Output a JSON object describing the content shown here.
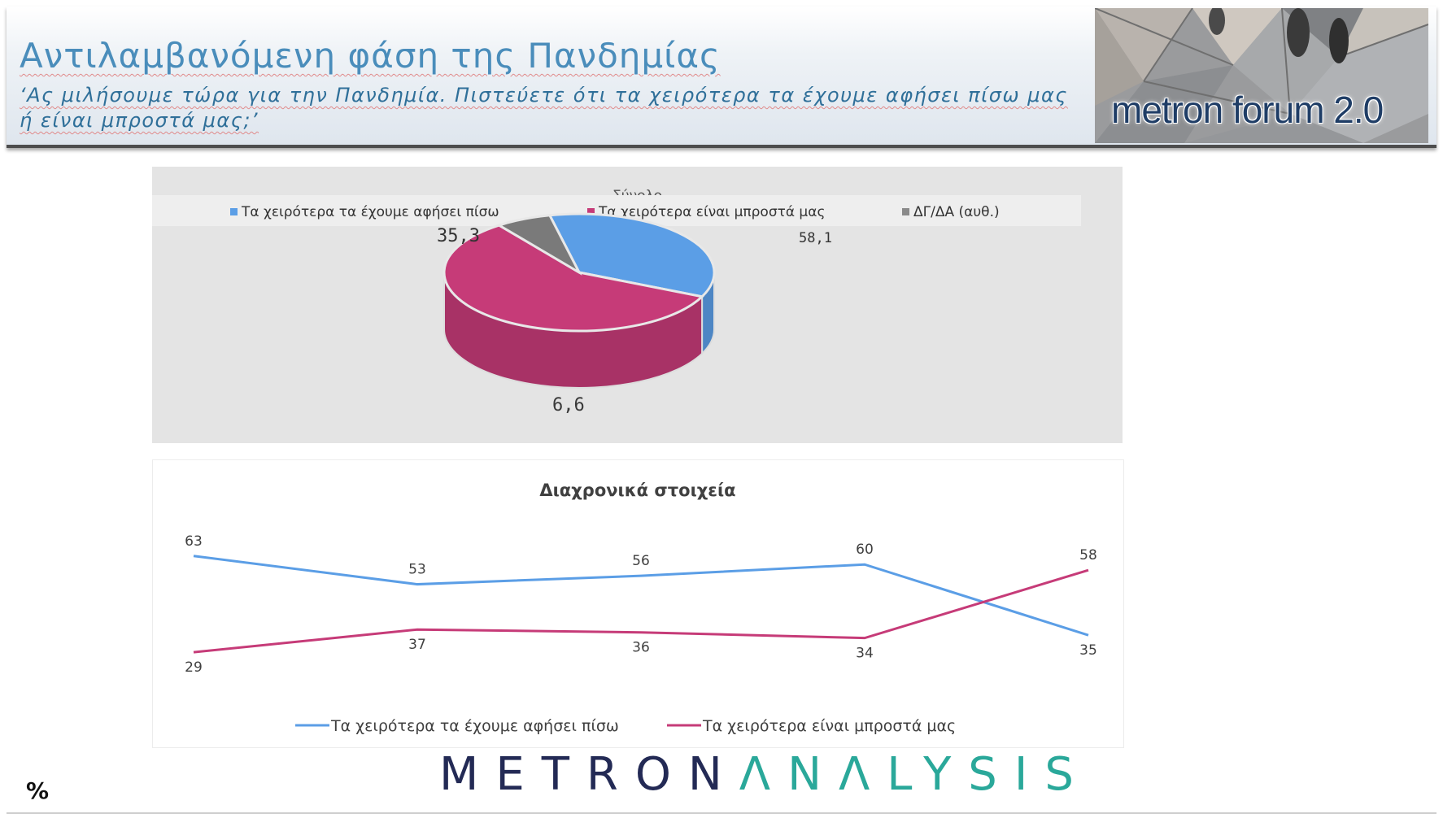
{
  "header": {
    "title": "Αντιλαμβανόμενη φάση της Πανδημίας",
    "subtitle": "‘Ας μιλήσουμε τώρα για την Πανδημία. Πιστεύετε ότι τα χειρότερα τα έχουμε αφήσει πίσω μας ή είναι μπροστά μας;’",
    "brand_image_text": "metron forum 2.0"
  },
  "chart_data": [
    {
      "type": "pie",
      "title": "Σύνολο",
      "legend_position": "top",
      "slices": [
        {
          "label": "Τα χειρότερα τα έχουμε αφήσει πίσω",
          "value": 35.3,
          "value_label": "35,3",
          "color": "#5b9ee6"
        },
        {
          "label": "Τα χειρότερα είναι μπροστά μας",
          "value": 58.1,
          "value_label": "58,1",
          "color": "#c63b78"
        },
        {
          "label": "ΔΓ/ΔΑ (αυθ.)",
          "value": 6.6,
          "value_label": "6,6",
          "color": "#7a7a7a"
        }
      ]
    },
    {
      "type": "line",
      "title": "Διαχρονικά στοιχεία",
      "legend_position": "bottom",
      "grid": false,
      "ylim": [
        0,
        100
      ],
      "x": [
        1,
        2,
        3,
        4,
        5
      ],
      "series": [
        {
          "name": "Τα χειρότερα τα έχουμε αφήσει πίσω",
          "values": [
            63,
            53,
            56,
            60,
            35
          ],
          "color": "#5b9ee6"
        },
        {
          "name": "Τα χειρότερα είναι μπροστά μας",
          "values": [
            29,
            37,
            36,
            34,
            58
          ],
          "color": "#c63b78"
        }
      ]
    }
  ],
  "footer": {
    "brand_part1": "METRON",
    "brand_part2": "ΛNΛLYSIS",
    "unit": "%"
  }
}
